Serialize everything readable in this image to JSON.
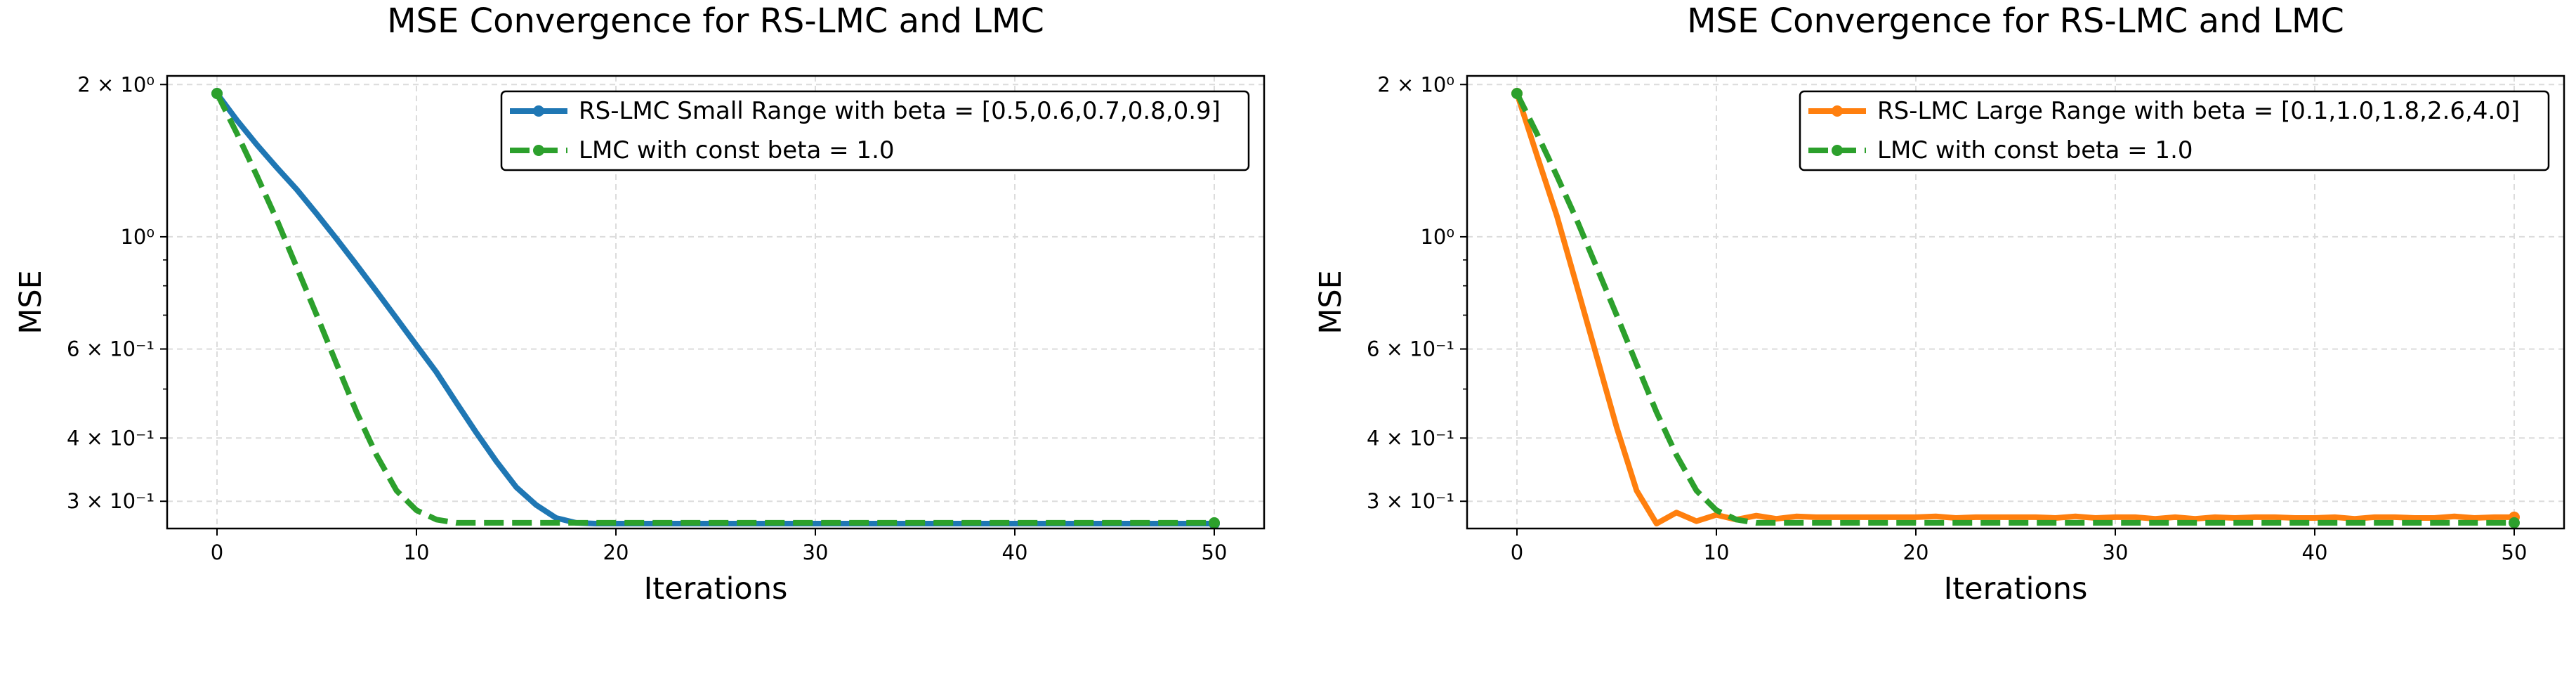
{
  "colors": {
    "rs_small": "#1f77b4",
    "rs_large": "#ff7f0e",
    "lmc": "#2ca02c",
    "grid": "#dcdcdc",
    "axis": "#000000"
  },
  "chart_data": [
    {
      "type": "line",
      "title": "MSE Convergence for RS-LMC and LMC",
      "xlabel": "Iterations",
      "ylabel": "MSE",
      "yscale": "log",
      "xlim": [
        -2.5,
        52.5
      ],
      "ylim": [
        0.265,
        2.08
      ],
      "xticks": [
        0,
        10,
        20,
        30,
        40,
        50
      ],
      "yticks": [
        {
          "value": 2.0,
          "label": "2 × 10⁰"
        },
        {
          "value": 1.0,
          "label": "10⁰"
        },
        {
          "value": 0.6,
          "label": "6 × 10⁻¹"
        },
        {
          "value": 0.4,
          "label": "4 × 10⁻¹"
        },
        {
          "value": 0.3,
          "label": "3 × 10⁻¹"
        }
      ],
      "grid": true,
      "legend_position": "top-right",
      "series": [
        {
          "name": "RS-LMC Small Range with beta = [0.5,0.6,0.7,0.8,0.9]",
          "color_key": "rs_small",
          "style": "solid",
          "x": [
            0,
            1,
            2,
            3,
            4,
            5,
            6,
            7,
            8,
            9,
            10,
            11,
            12,
            13,
            14,
            15,
            16,
            17,
            18,
            19,
            20,
            22,
            25,
            30,
            35,
            40,
            45,
            50
          ],
          "y": [
            1.92,
            1.7,
            1.52,
            1.37,
            1.24,
            1.11,
            0.99,
            0.88,
            0.78,
            0.69,
            0.61,
            0.54,
            0.47,
            0.41,
            0.36,
            0.32,
            0.295,
            0.278,
            0.272,
            0.271,
            0.271,
            0.271,
            0.271,
            0.271,
            0.271,
            0.271,
            0.271,
            0.271
          ]
        },
        {
          "name": "LMC with const beta = 1.0",
          "color_key": "lmc",
          "style": "dashed",
          "x": [
            0,
            1,
            2,
            3,
            4,
            5,
            6,
            7,
            8,
            9,
            10,
            11,
            12,
            13,
            14,
            15,
            16,
            18,
            20,
            25,
            30,
            35,
            40,
            45,
            50
          ],
          "y": [
            1.92,
            1.6,
            1.32,
            1.08,
            0.87,
            0.7,
            0.56,
            0.45,
            0.37,
            0.315,
            0.288,
            0.276,
            0.272,
            0.272,
            0.272,
            0.272,
            0.272,
            0.272,
            0.272,
            0.272,
            0.272,
            0.272,
            0.272,
            0.272,
            0.272
          ]
        }
      ]
    },
    {
      "type": "line",
      "title": "MSE Convergence for RS-LMC and LMC",
      "xlabel": "Iterations",
      "ylabel": "MSE",
      "yscale": "log",
      "xlim": [
        -2.5,
        52.5
      ],
      "ylim": [
        0.265,
        2.08
      ],
      "xticks": [
        0,
        10,
        20,
        30,
        40,
        50
      ],
      "yticks": [
        {
          "value": 2.0,
          "label": "2 × 10⁰"
        },
        {
          "value": 1.0,
          "label": "10⁰"
        },
        {
          "value": 0.6,
          "label": "6 × 10⁻¹"
        },
        {
          "value": 0.4,
          "label": "4 × 10⁻¹"
        },
        {
          "value": 0.3,
          "label": "3 × 10⁻¹"
        }
      ],
      "grid": true,
      "legend_position": "top-right",
      "series": [
        {
          "name": "RS-LMC Large Range with beta = [0.1,1.0,1.8,2.6,4.0]",
          "color_key": "rs_large",
          "style": "solid",
          "x": [
            0,
            1,
            2,
            3,
            4,
            5,
            6,
            7,
            8,
            9,
            10,
            11,
            12,
            13,
            14,
            15,
            16,
            17,
            18,
            19,
            20,
            21,
            22,
            23,
            24,
            25,
            26,
            27,
            28,
            29,
            30,
            31,
            32,
            33,
            34,
            35,
            36,
            37,
            38,
            39,
            40,
            41,
            42,
            43,
            44,
            45,
            46,
            47,
            48,
            49,
            50
          ],
          "y": [
            1.92,
            1.45,
            1.1,
            0.8,
            0.58,
            0.42,
            0.315,
            0.271,
            0.285,
            0.274,
            0.282,
            0.276,
            0.281,
            0.277,
            0.28,
            0.279,
            0.279,
            0.279,
            0.279,
            0.279,
            0.279,
            0.28,
            0.278,
            0.279,
            0.279,
            0.279,
            0.279,
            0.278,
            0.28,
            0.278,
            0.279,
            0.279,
            0.277,
            0.279,
            0.277,
            0.279,
            0.278,
            0.279,
            0.279,
            0.278,
            0.278,
            0.279,
            0.277,
            0.279,
            0.279,
            0.278,
            0.278,
            0.28,
            0.278,
            0.279,
            0.279
          ]
        },
        {
          "name": "LMC with const beta = 1.0",
          "color_key": "lmc",
          "style": "dashed",
          "x": [
            0,
            1,
            2,
            3,
            4,
            5,
            6,
            7,
            8,
            9,
            10,
            11,
            12,
            13,
            14,
            15,
            16,
            18,
            20,
            25,
            30,
            35,
            40,
            45,
            50
          ],
          "y": [
            1.92,
            1.6,
            1.32,
            1.08,
            0.87,
            0.7,
            0.56,
            0.45,
            0.37,
            0.315,
            0.288,
            0.276,
            0.272,
            0.272,
            0.272,
            0.272,
            0.272,
            0.272,
            0.272,
            0.272,
            0.272,
            0.272,
            0.272,
            0.272,
            0.272
          ]
        }
      ]
    }
  ]
}
